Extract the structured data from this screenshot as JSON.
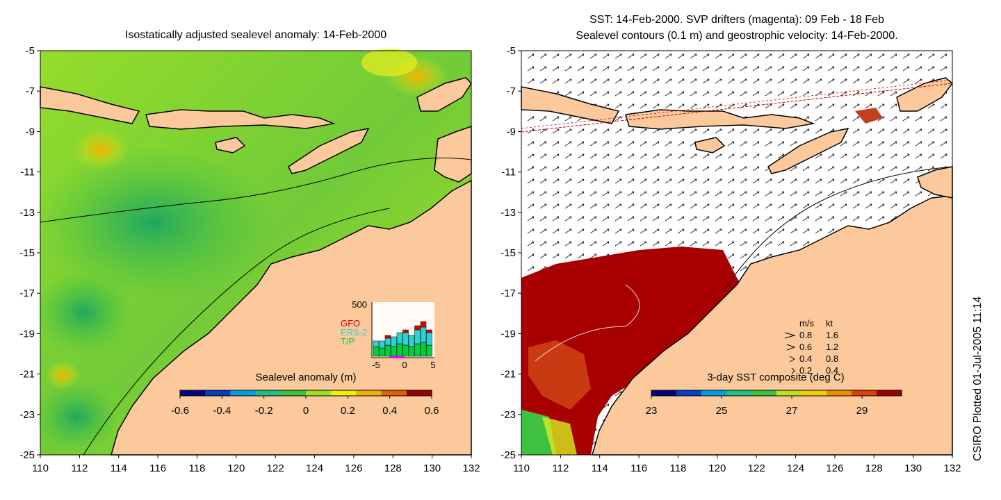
{
  "left_panel": {
    "title": "Isostatically adjusted sealevel anomaly: 14-Feb-2000",
    "colorbar": {
      "label": "Sealevel anomaly (m)",
      "ticks": [
        "-0.6",
        "-0.4",
        "-0.2",
        "0",
        "0.2",
        "0.4",
        "0.6"
      ],
      "colors": [
        "#000080",
        "#0040c0",
        "#00a0e0",
        "#20c080",
        "#40c040",
        "#a0e020",
        "#f0f000",
        "#f0b000",
        "#e06000",
        "#a00000"
      ]
    },
    "inset": {
      "y_max_label": "500",
      "x_ticks": [
        "-5",
        "0",
        "5"
      ],
      "legend": [
        {
          "label": "GFO",
          "color": "#e00000"
        },
        {
          "label": "ERS-2",
          "color": "#30d0d0"
        },
        {
          "label": "T/P",
          "color": "#00d040"
        }
      ]
    }
  },
  "right_panel": {
    "title_line1": "SST: 14-Feb-2000. SVP drifters (magenta): 09 Feb - 18 Feb",
    "title_line2": "Sealevel contours (0.1 m) and geostrophic velocity: 14-Feb-2000.",
    "colorbar": {
      "label": "3-day SST composite (deg C)",
      "ticks": [
        "23",
        "25",
        "27",
        "29"
      ],
      "colors": [
        "#000080",
        "#0040d0",
        "#00a0e0",
        "#20c080",
        "#40c040",
        "#c0e020",
        "#f0d000",
        "#f09000",
        "#e04000",
        "#a00000"
      ]
    },
    "velocity_legend": {
      "header_ms": "m/s",
      "header_kt": "kt",
      "rows": [
        {
          "ms": "0.8",
          "kt": "1.6"
        },
        {
          "ms": "0.6",
          "kt": "1.2"
        },
        {
          "ms": "0.4",
          "kt": "0.8"
        },
        {
          "ms": "0.2",
          "kt": "0.4"
        }
      ]
    }
  },
  "axes": {
    "x_ticks": [
      "110",
      "112",
      "114",
      "116",
      "118",
      "120",
      "122",
      "124",
      "126",
      "128",
      "130",
      "132"
    ],
    "y_ticks": [
      "-5",
      "-7",
      "-9",
      "-11",
      "-13",
      "-15",
      "-17",
      "-19",
      "-21",
      "-23",
      "-25"
    ]
  },
  "colors": {
    "land": "#fbc99b",
    "ocean_green": "#5cc83a",
    "ocean_yellow": "#d6ec1e",
    "sst_red": "#a80000"
  },
  "footer": {
    "plot_stamp": "CSIRO Plotted 01-Jul-2005 11:14"
  }
}
